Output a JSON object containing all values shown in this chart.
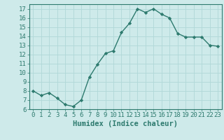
{
  "x": [
    0,
    1,
    2,
    3,
    4,
    5,
    6,
    7,
    8,
    9,
    10,
    11,
    12,
    13,
    14,
    15,
    16,
    17,
    18,
    19,
    20,
    21,
    22,
    23
  ],
  "y": [
    8.0,
    7.5,
    7.8,
    7.2,
    6.5,
    6.3,
    7.0,
    9.5,
    10.9,
    12.1,
    12.4,
    14.4,
    15.4,
    17.0,
    16.6,
    17.0,
    16.4,
    16.0,
    14.3,
    13.9,
    13.9,
    13.9,
    13.0,
    12.9
  ],
  "line_color": "#2d7a6e",
  "marker": "D",
  "marker_size": 2.2,
  "background_color": "#ceeaea",
  "grid_color": "#b0d8d8",
  "xlabel": "Humidex (Indice chaleur)",
  "ylim": [
    6,
    17.5
  ],
  "xlim": [
    -0.5,
    23.5
  ],
  "yticks": [
    6,
    7,
    8,
    9,
    10,
    11,
    12,
    13,
    14,
    15,
    16,
    17
  ],
  "xticks": [
    0,
    1,
    2,
    3,
    4,
    5,
    6,
    7,
    8,
    9,
    10,
    11,
    12,
    13,
    14,
    15,
    16,
    17,
    18,
    19,
    20,
    21,
    22,
    23
  ],
  "tick_color": "#2d7a6e",
  "label_color": "#2d7a6e",
  "font_size": 6.5,
  "xlabel_fontsize": 7.5,
  "linewidth": 1.0
}
